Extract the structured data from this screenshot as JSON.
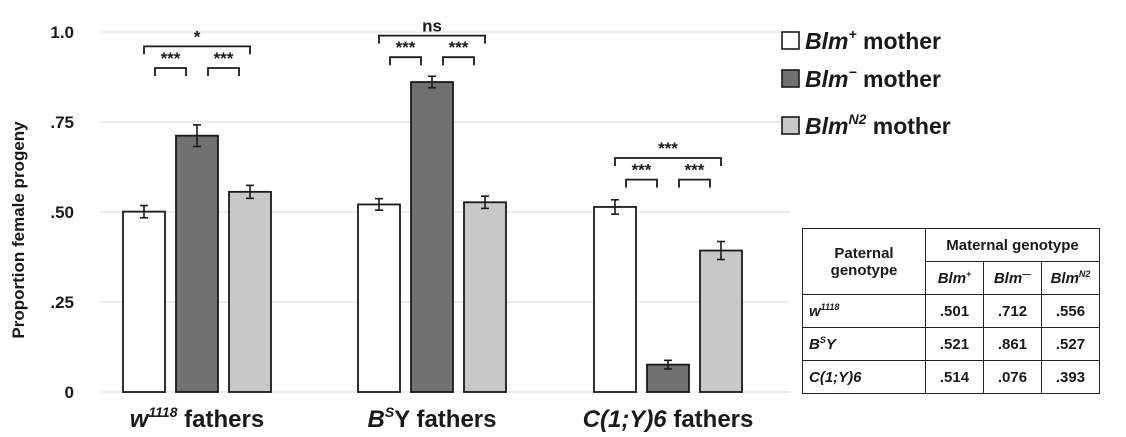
{
  "chart_data": {
    "type": "bar",
    "ylabel": "Proportion female progeny",
    "ylim": [
      0,
      1.0
    ],
    "yticks": [
      {
        "value": 0,
        "label": "0"
      },
      {
        "value": 0.25,
        "label": ".25"
      },
      {
        "value": 0.5,
        "label": ".50"
      },
      {
        "value": 0.75,
        "label": ".75"
      },
      {
        "value": 1.0,
        "label": "1.0"
      }
    ],
    "grid": true,
    "categories": [
      {
        "base": "w",
        "sup": "1118",
        "suffix": " fathers"
      },
      {
        "base": "B",
        "sup": "S",
        "suffix": "Y fathers"
      },
      {
        "base": "C(1;Y)6",
        "sup": "",
        "suffix": " fathers"
      }
    ],
    "series": [
      {
        "name": "Blm",
        "sup": "+",
        "suffix": " mother",
        "color": "#ffffff",
        "values": [
          0.501,
          0.521,
          0.514
        ],
        "errors": [
          0.017,
          0.016,
          0.02
        ]
      },
      {
        "name": "Blm",
        "sup": "−",
        "suffix": " mother",
        "color": "#707070",
        "values": [
          0.712,
          0.861,
          0.076
        ],
        "errors": [
          0.03,
          0.016,
          0.012
        ]
      },
      {
        "name": "Blm",
        "sup": "N2",
        "suffix": " mother",
        "color": "#c8c8c8",
        "values": [
          0.556,
          0.527,
          0.393
        ],
        "errors": [
          0.018,
          0.017,
          0.025
        ]
      }
    ],
    "significance": [
      {
        "group": 0,
        "from": 0,
        "to": 1,
        "label": "***",
        "level": 0.9
      },
      {
        "group": 0,
        "from": 1,
        "to": 2,
        "label": "***",
        "level": 0.9
      },
      {
        "group": 0,
        "from": 0,
        "to": 2,
        "label": "*",
        "level": 0.96
      },
      {
        "group": 1,
        "from": 0,
        "to": 1,
        "label": "***",
        "level": 0.93
      },
      {
        "group": 1,
        "from": 1,
        "to": 2,
        "label": "***",
        "level": 0.93
      },
      {
        "group": 1,
        "from": 0,
        "to": 2,
        "label": "ns",
        "level": 0.99
      },
      {
        "group": 2,
        "from": 0,
        "to": 1,
        "label": "***",
        "level": 0.59
      },
      {
        "group": 2,
        "from": 1,
        "to": 2,
        "label": "***",
        "level": 0.59
      },
      {
        "group": 2,
        "from": 0,
        "to": 2,
        "label": "***",
        "level": 0.65
      }
    ],
    "legend_position": "top-right"
  },
  "table": {
    "header_paternal": [
      "Paternal",
      "genotype"
    ],
    "header_maternal": "Maternal genotype",
    "columns": [
      {
        "base": "Blm",
        "sup": "+"
      },
      {
        "base": "Blm",
        "sup": "—"
      },
      {
        "base": "Blm",
        "sup": "N2"
      }
    ],
    "rows": [
      {
        "base": "w",
        "sup": "1118",
        "suffix": "",
        "values": [
          ".501",
          ".712",
          ".556"
        ]
      },
      {
        "base": "B",
        "sup": "S",
        "suffix": "Y",
        "values": [
          ".521",
          ".861",
          ".527"
        ]
      },
      {
        "base": "C(1;Y)6",
        "sup": "",
        "suffix": "",
        "values": [
          ".514",
          ".076",
          ".393"
        ]
      }
    ]
  }
}
